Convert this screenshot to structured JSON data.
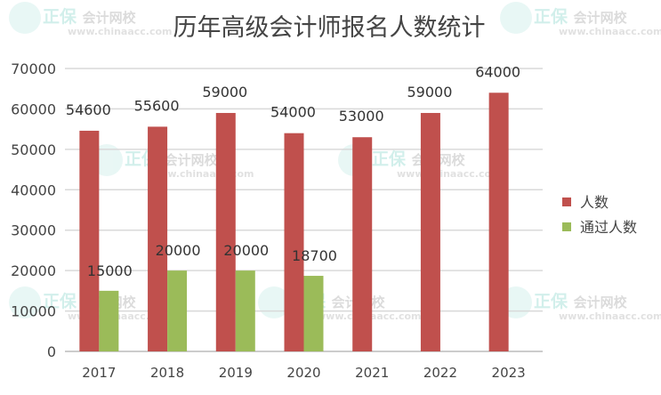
{
  "watermark": {
    "brand": "正保",
    "name": "会计网校",
    "url": "www.chinaacc.com"
  },
  "chart_data": {
    "type": "bar",
    "title": "历年高级会计师报名人数统计",
    "categories": [
      "2017",
      "2018",
      "2019",
      "2020",
      "2021",
      "2022",
      "2023"
    ],
    "series": [
      {
        "name": "人数",
        "color": "#C0504D",
        "values": [
          54600,
          55600,
          59000,
          54000,
          53000,
          59000,
          64000
        ]
      },
      {
        "name": "通过人数",
        "color": "#9BBB59",
        "values": [
          15000,
          20000,
          20000,
          18700,
          null,
          null,
          null
        ]
      }
    ],
    "ylim": [
      0,
      70000
    ],
    "yticks": [
      0,
      10000,
      20000,
      30000,
      40000,
      50000,
      60000,
      70000
    ],
    "grid": true,
    "legend": "right",
    "data_labels": true
  }
}
